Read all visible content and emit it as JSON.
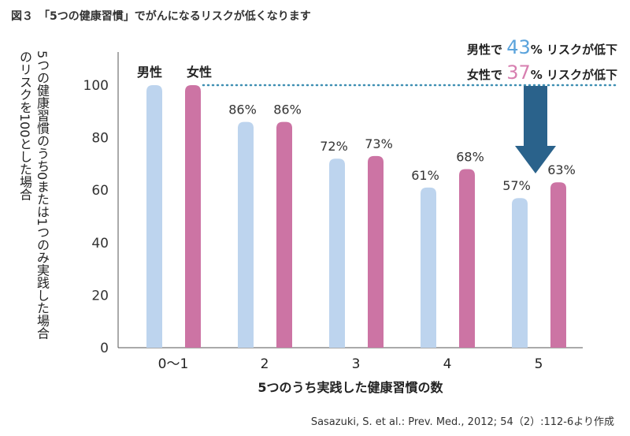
{
  "title": "図３　「5つの健康習慣」でがんになるリスクが低くなります",
  "note": {
    "male_prefix": "男性で",
    "male_value": "43",
    "female_prefix": "女性で",
    "female_value": "37",
    "suffix": "% リスクが低下"
  },
  "source": "Sasazuki, S. et al.: Prev. Med., 2012; 54（2）:112-6より作成",
  "colors": {
    "male": "#bdd4ee",
    "female": "#cc74a4",
    "arrow": "#2a628b",
    "dots": "#3f8fb3",
    "male_text": "#5aa3dc",
    "female_text": "#d77fb0"
  },
  "chart_data": {
    "type": "bar",
    "title": "図３　「5つの健康習慣」でがんになるリスクが低くなります",
    "xlabel": "5つのうち実践した健康習慣の数",
    "ylabel": "5つの健康習慣のうち0または1つのみ実践した場合のリスクを100とした場合",
    "categories": [
      "0〜1",
      "2",
      "3",
      "4",
      "5"
    ],
    "series": [
      {
        "name": "男性",
        "values": [
          100,
          86,
          72,
          61,
          57
        ],
        "labels": [
          "",
          "86%",
          "72%",
          "61%",
          "57%"
        ]
      },
      {
        "name": "女性",
        "values": [
          100,
          86,
          73,
          68,
          63
        ],
        "labels": [
          "",
          "86%",
          "73%",
          "68%",
          "63%"
        ]
      }
    ],
    "ylim": [
      0,
      100
    ],
    "yticks": [
      0,
      20,
      40,
      60,
      80,
      100
    ],
    "legend": "above first group"
  }
}
